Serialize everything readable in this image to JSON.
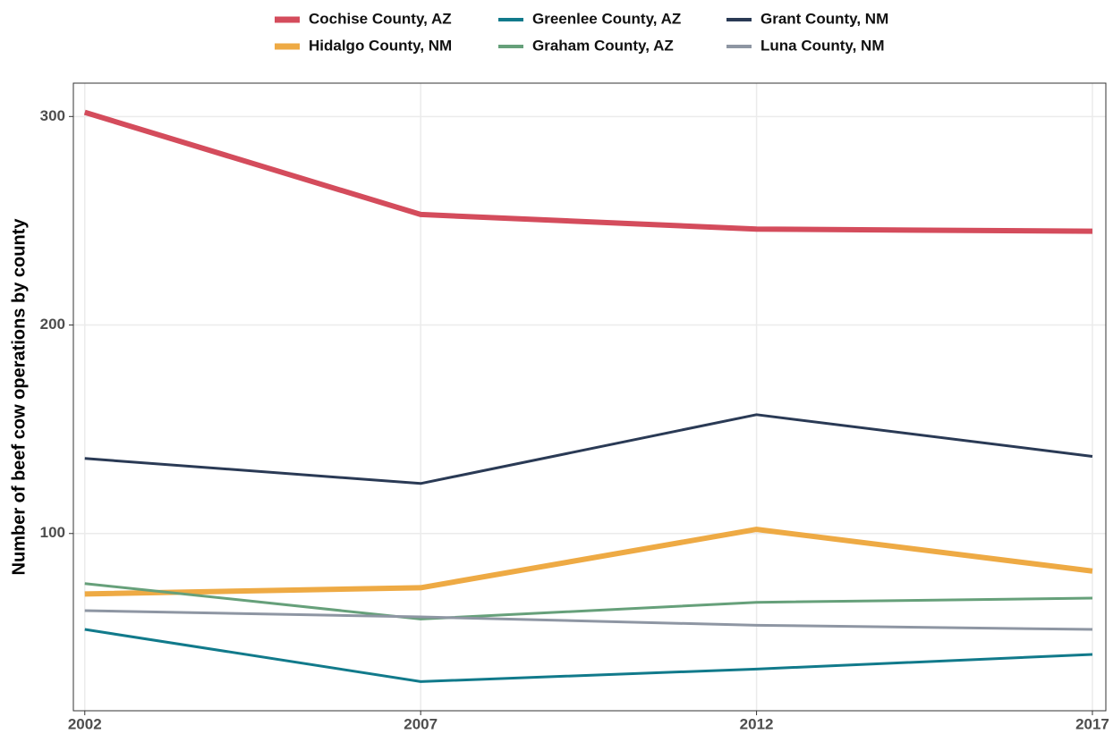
{
  "chart_data": {
    "type": "line",
    "y_label": "Number of beef cow operations by county",
    "x": [
      2002,
      2007,
      2012,
      2017
    ],
    "xlim": [
      2001.83,
      2017.2
    ],
    "xticks": [
      2002,
      2007,
      2012,
      2017
    ],
    "ylim": [
      15,
      316
    ],
    "yticks": [
      100,
      200,
      300
    ],
    "grid": true,
    "legend": "top",
    "series": [
      {
        "name": "Cochise County, AZ",
        "color": "#d44c5c",
        "linewidth": 6,
        "values": [
          302,
          253,
          246,
          245
        ]
      },
      {
        "name": "Hidalgo County, NM",
        "color": "#eeaa44",
        "linewidth": 6,
        "values": [
          71,
          74,
          102,
          82
        ]
      },
      {
        "name": "Greenlee County, AZ",
        "color": "#117a8b",
        "linewidth": 3,
        "values": [
          54,
          29,
          35,
          42
        ]
      },
      {
        "name": "Graham County, AZ",
        "color": "#66a07a",
        "linewidth": 3,
        "values": [
          76,
          59,
          67,
          69
        ]
      },
      {
        "name": "Grant County, NM",
        "color": "#2a3a55",
        "linewidth": 3,
        "values": [
          136,
          124,
          157,
          137
        ]
      },
      {
        "name": "Luna County, NM",
        "color": "#8e96a3",
        "linewidth": 3,
        "values": [
          63,
          60,
          56,
          54
        ]
      }
    ]
  }
}
